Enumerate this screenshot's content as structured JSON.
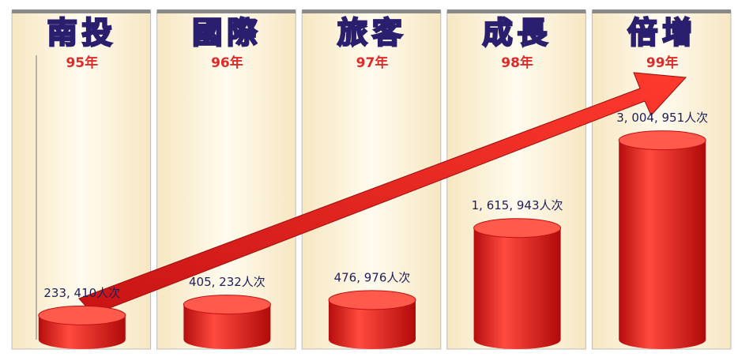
{
  "chart_data": {
    "type": "bar",
    "headings": [
      "南投",
      "國際",
      "旅客",
      "成長",
      "倍增"
    ],
    "categories": [
      "95年",
      "96年",
      "97年",
      "98年",
      "99年"
    ],
    "values": [
      233410,
      405232,
      476976,
      1615943,
      3004951
    ],
    "value_labels": [
      "233, 410人次",
      "405, 232人次",
      "476, 976人次",
      "1, 615, 943人次",
      "3, 004, 951人次"
    ],
    "color": "#e3201b",
    "ylim": [
      0,
      4500000
    ]
  }
}
